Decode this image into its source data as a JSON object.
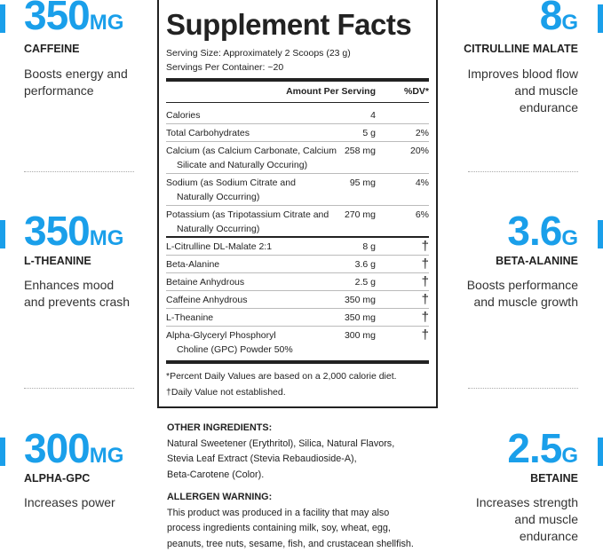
{
  "left": [
    {
      "value": "350",
      "unit": "MG",
      "name": "CAFFEINE",
      "desc": "Boosts energy and performance"
    },
    {
      "value": "350",
      "unit": "MG",
      "name": "L-THEANINE",
      "desc": "Enhances mood and prevents crash"
    },
    {
      "value": "300",
      "unit": "MG",
      "name": "ALPHA-GPC",
      "desc": "Increases power"
    }
  ],
  "right": [
    {
      "value": "8",
      "unit": "G",
      "name": "CITRULLINE MALATE",
      "desc": "Improves blood flow and muscle endurance"
    },
    {
      "value": "3.6",
      "unit": "G",
      "name": "BETA-ALANINE",
      "desc": "Boosts performance and muscle growth"
    },
    {
      "value": "2.5",
      "unit": "G",
      "name": "BETAINE",
      "desc": "Increases strength and muscle endurance"
    }
  ],
  "accent": "#1a9fea",
  "panel": {
    "title": "Supplement Facts",
    "serving_size": "Serving Size: Approximately 2 Scoops (23 g)",
    "servings": "Servings Per Container: ~20",
    "col_amount": "Amount Per Serving",
    "col_dv": "%DV*",
    "rows": [
      {
        "name": "Calories",
        "sub": "",
        "amount": "4",
        "dv": ""
      },
      {
        "name": "Total Carbohydrates",
        "sub": "",
        "amount": "5 g",
        "dv": "2%"
      },
      {
        "name": "Calcium (as Calcium Carbonate, Calcium",
        "sub": "Silicate and Naturally Occuring)",
        "amount": "258 mg",
        "dv": "20%"
      },
      {
        "name": "Sodium (as Sodium Citrate and",
        "sub": "Naturally Occurring)",
        "amount": "95 mg",
        "dv": "4%"
      },
      {
        "name": "Potassium (as Tripotassium Citrate and",
        "sub": "Naturally Occurring)",
        "amount": "270 mg",
        "dv": "6%"
      },
      {
        "name": "L-Citrulline DL-Malate 2:1",
        "sub": "",
        "amount": "8 g",
        "dv": "†"
      },
      {
        "name": "Beta-Alanine",
        "sub": "",
        "amount": "3.6 g",
        "dv": "†"
      },
      {
        "name": "Betaine Anhydrous",
        "sub": "",
        "amount": "2.5 g",
        "dv": "†"
      },
      {
        "name": "Caffeine Anhydrous",
        "sub": "",
        "amount": "350 mg",
        "dv": "†"
      },
      {
        "name": "L-Theanine",
        "sub": "",
        "amount": "350 mg",
        "dv": "†"
      },
      {
        "name": "Alpha-Glyceryl Phosphoryl",
        "sub": "Choline (GPC) Powder 50%",
        "amount": "300 mg",
        "dv": "†"
      }
    ],
    "footnote1": "*Percent Daily Values are based on a 2,000 calorie diet.",
    "footnote2": "†Daily Value not established."
  },
  "other_ingredients": {
    "heading": "OTHER INGREDIENTS:",
    "lines": [
      "Natural Sweetener (Erythritol), Silica, Natural Flavors,",
      "Stevia Leaf Extract (Stevia Rebaudioside-A),",
      "Beta-Carotene (Color)."
    ]
  },
  "allergen": {
    "heading": "ALLERGEN WARNING:",
    "lines": [
      "This product was produced in a facility that may also",
      "process ingredients containing milk, soy, wheat, egg,",
      "peanuts, tree nuts, sesame, fish, and crustacean shellfish."
    ]
  }
}
